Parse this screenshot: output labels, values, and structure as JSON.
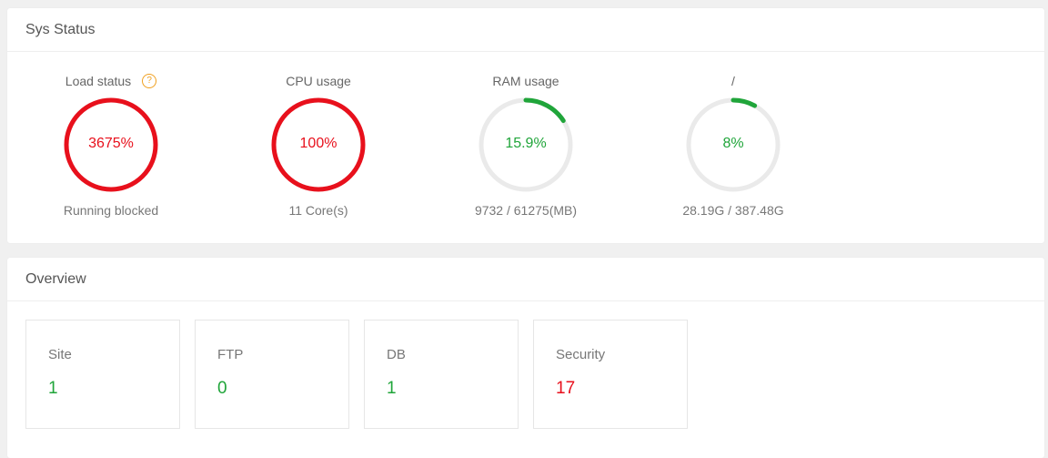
{
  "sys_status": {
    "title": "Sys Status",
    "gauges": [
      {
        "title": "Load status",
        "value_text": "3675%",
        "fraction": 1.0,
        "sub": "Running blocked",
        "color": "#e8101c",
        "help_icon": "?"
      },
      {
        "title": "CPU usage",
        "value_text": "100%",
        "fraction": 1.0,
        "sub": "11 Core(s)",
        "color": "#e8101c"
      },
      {
        "title": "RAM usage",
        "value_text": "15.9%",
        "fraction": 0.159,
        "sub": "9732 / 61275(MB)",
        "color": "#20a53a"
      },
      {
        "title": "/",
        "value_text": "8%",
        "fraction": 0.08,
        "sub": "28.19G / 387.48G",
        "color": "#20a53a"
      }
    ],
    "track_color": "#eaeaea"
  },
  "overview": {
    "title": "Overview",
    "cards": [
      {
        "label": "Site",
        "value": "1",
        "color": "#20a53a"
      },
      {
        "label": "FTP",
        "value": "0",
        "color": "#20a53a"
      },
      {
        "label": "DB",
        "value": "1",
        "color": "#20a53a"
      },
      {
        "label": "Security",
        "value": "17",
        "color": "#e8101c"
      }
    ]
  }
}
